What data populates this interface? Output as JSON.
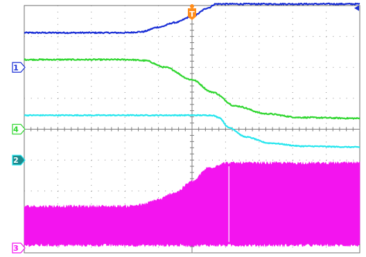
{
  "chart_data": {
    "type": "line",
    "title": "",
    "xlabel": "",
    "ylabel": "",
    "grid": true,
    "x_divisions": 10,
    "y_divisions": 8,
    "xlim": [
      0,
      10
    ],
    "ylim": [
      0,
      8
    ],
    "trigger_marker": {
      "label": "T",
      "x": 5.0,
      "color": "#ff8c1a"
    },
    "series": [
      {
        "marker_label": "1",
        "color": "#1a2fd6",
        "ground_level": 6.0,
        "noise": 0.02,
        "x": [
          0,
          3.0,
          3.5,
          4.0,
          4.5,
          5.0,
          5.5,
          5.7,
          10
        ],
        "y": [
          7.12,
          7.12,
          7.15,
          7.3,
          7.45,
          7.65,
          7.93,
          8.05,
          8.05
        ]
      },
      {
        "marker_label": "4",
        "color": "#30d630",
        "ground_level": 4.0,
        "noise": 0.02,
        "x": [
          0,
          3.1,
          3.6,
          4.2,
          5.0,
          5.6,
          6.3,
          7.2,
          8.2,
          10
        ],
        "y": [
          6.25,
          6.25,
          6.22,
          6.0,
          5.6,
          5.2,
          4.75,
          4.5,
          4.38,
          4.35
        ]
      },
      {
        "marker_label": "2",
        "color": "#26e6ee",
        "ground_level": 3.0,
        "noise": 0.015,
        "x": [
          0,
          5.6,
          5.8,
          6.1,
          6.6,
          7.3,
          8.3,
          10
        ],
        "y": [
          4.45,
          4.45,
          4.38,
          4.05,
          3.75,
          3.55,
          3.45,
          3.42
        ]
      },
      {
        "marker_label": "3",
        "color": "#f314ef",
        "ground_level": 0.0,
        "filled": true,
        "noise": 0.05,
        "x": [
          0,
          3.0,
          3.5,
          4.0,
          4.5,
          5.0,
          5.5,
          6.0,
          10
        ],
        "y_top": [
          1.5,
          1.5,
          1.55,
          1.72,
          1.95,
          2.3,
          2.75,
          2.9,
          2.9
        ],
        "y_bottom": [
          0.25,
          0.25,
          0.25,
          0.25,
          0.25,
          0.25,
          0.25,
          0.25,
          0.25
        ],
        "spike_x": 6.1,
        "spike_gap": [
          0.35,
          2.8
        ]
      }
    ]
  }
}
